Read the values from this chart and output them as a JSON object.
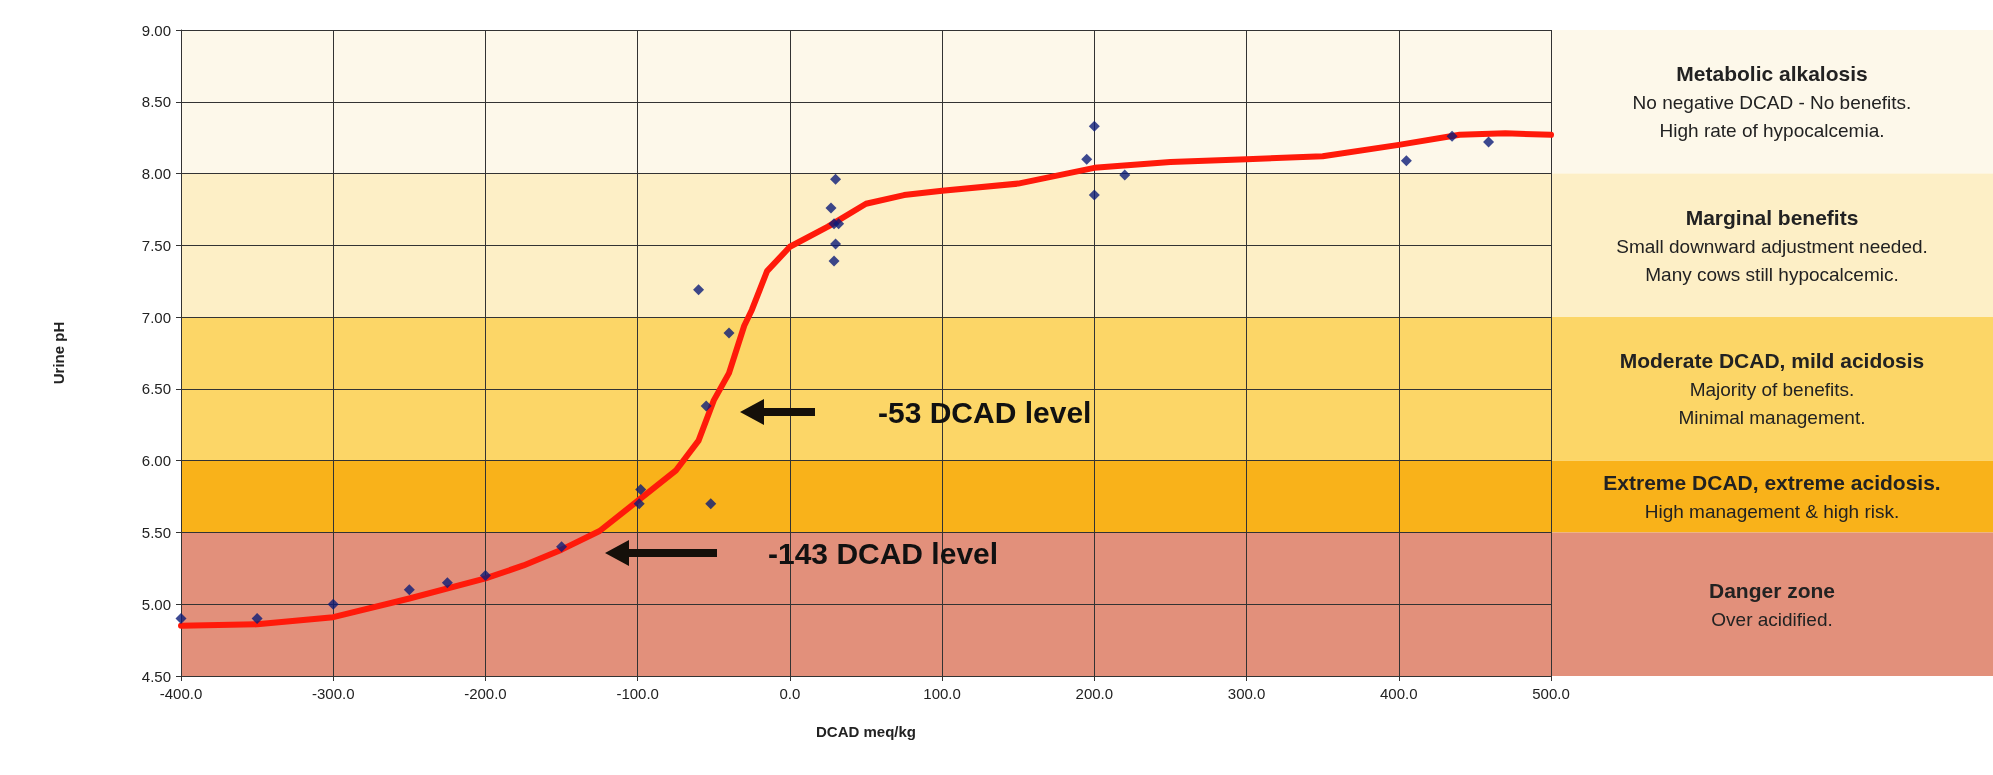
{
  "chart_data": {
    "type": "scatter",
    "xlabel": "DCAD meq/kg",
    "ylabel": "Urine pH",
    "xlim": [
      -400,
      500
    ],
    "xticks": [
      {
        "value": -400,
        "label": "-400.0"
      },
      {
        "value": -300,
        "label": "-300.0"
      },
      {
        "value": -200,
        "label": "-200.0"
      },
      {
        "value": -100,
        "label": "-100.0"
      },
      {
        "value": 0,
        "label": "0.0"
      },
      {
        "value": 100,
        "label": "100.0"
      },
      {
        "value": 200,
        "label": "200.0"
      },
      {
        "value": 300,
        "label": "300.0"
      },
      {
        "value": 400,
        "label": "400.0"
      },
      {
        "value": 500,
        "label": "500.0"
      }
    ],
    "ylim": [
      4.5,
      9
    ],
    "yticks": [
      {
        "value": 4.5,
        "label": "4.50"
      },
      {
        "value": 5,
        "label": "5.00"
      },
      {
        "value": 5.5,
        "label": "5.50"
      },
      {
        "value": 6,
        "label": "6.00"
      },
      {
        "value": 6.5,
        "label": "6.50"
      },
      {
        "value": 7,
        "label": "7.00"
      },
      {
        "value": 7.5,
        "label": "7.50"
      },
      {
        "value": 8,
        "label": "8.00"
      },
      {
        "value": 8.5,
        "label": "8.50"
      },
      {
        "value": 9,
        "label": "9.00"
      }
    ],
    "grid": true,
    "series": [
      {
        "type": "scatter",
        "marker": "diamond",
        "color": "#0b1c78",
        "x": [
          -400,
          -350,
          -300,
          -250,
          -225,
          -200,
          -150,
          -99,
          -98,
          -60,
          -40,
          -55,
          -52,
          29,
          30,
          29,
          32,
          27,
          30,
          195,
          200,
          200,
          220,
          405,
          435,
          459
        ],
        "values": [
          4.9,
          4.9,
          5.0,
          5.1,
          5.15,
          5.2,
          5.4,
          5.7,
          5.8,
          7.19,
          6.89,
          6.38,
          5.7,
          7.39,
          7.51,
          7.65,
          7.65,
          7.76,
          7.96,
          8.1,
          8.33,
          7.85,
          7.99,
          8.09,
          8.26,
          8.22
        ]
      },
      {
        "type": "line",
        "marker": "none",
        "color": "#ff1a0a",
        "x": [
          -400,
          -350,
          -300,
          -250,
          -200,
          -175,
          -150,
          -125,
          -100,
          -75,
          -60,
          -50,
          -40,
          -30,
          -25,
          -15,
          0,
          25,
          50,
          75,
          100,
          150,
          200,
          250,
          300,
          350,
          400,
          440,
          470,
          500
        ],
        "values": [
          4.85,
          4.86,
          4.91,
          5.04,
          5.18,
          5.27,
          5.38,
          5.51,
          5.72,
          5.93,
          6.14,
          6.42,
          6.61,
          6.94,
          7.05,
          7.32,
          7.49,
          7.63,
          7.79,
          7.85,
          7.88,
          7.93,
          8.04,
          8.08,
          8.1,
          8.12,
          8.2,
          8.27,
          8.28,
          8.27
        ]
      }
    ],
    "bands": [
      {
        "axis": "y",
        "from": 8,
        "to": 9,
        "color": "#fdf8ea",
        "label": "Metabolic alkalosis\nNo negative DCAD - No benefits.\nHigh rate of hypocalcemia."
      },
      {
        "axis": "y",
        "from": 7,
        "to": 8,
        "color": "#fdefc6",
        "label": "Marginal benefits\nSmall downward adjustment needed.\nMany cows still hypocalcemic."
      },
      {
        "axis": "y",
        "from": 6,
        "to": 7,
        "color": "#fcd667",
        "label": "Moderate DCAD, mild acidosis\nMajority of benefits.\nMinimal management."
      },
      {
        "axis": "y",
        "from": 5.5,
        "to": 6,
        "color": "#f9b21a",
        "label": "Extreme DCAD, extreme acidosis.\nHigh management & high risk."
      },
      {
        "axis": "y",
        "from": 4.5,
        "to": 5.5,
        "color": "#e2907b",
        "label": "Danger zone\nOver acidified."
      }
    ],
    "annotations": [
      "-53 DCAD level",
      "-143 DCAD level"
    ]
  }
}
